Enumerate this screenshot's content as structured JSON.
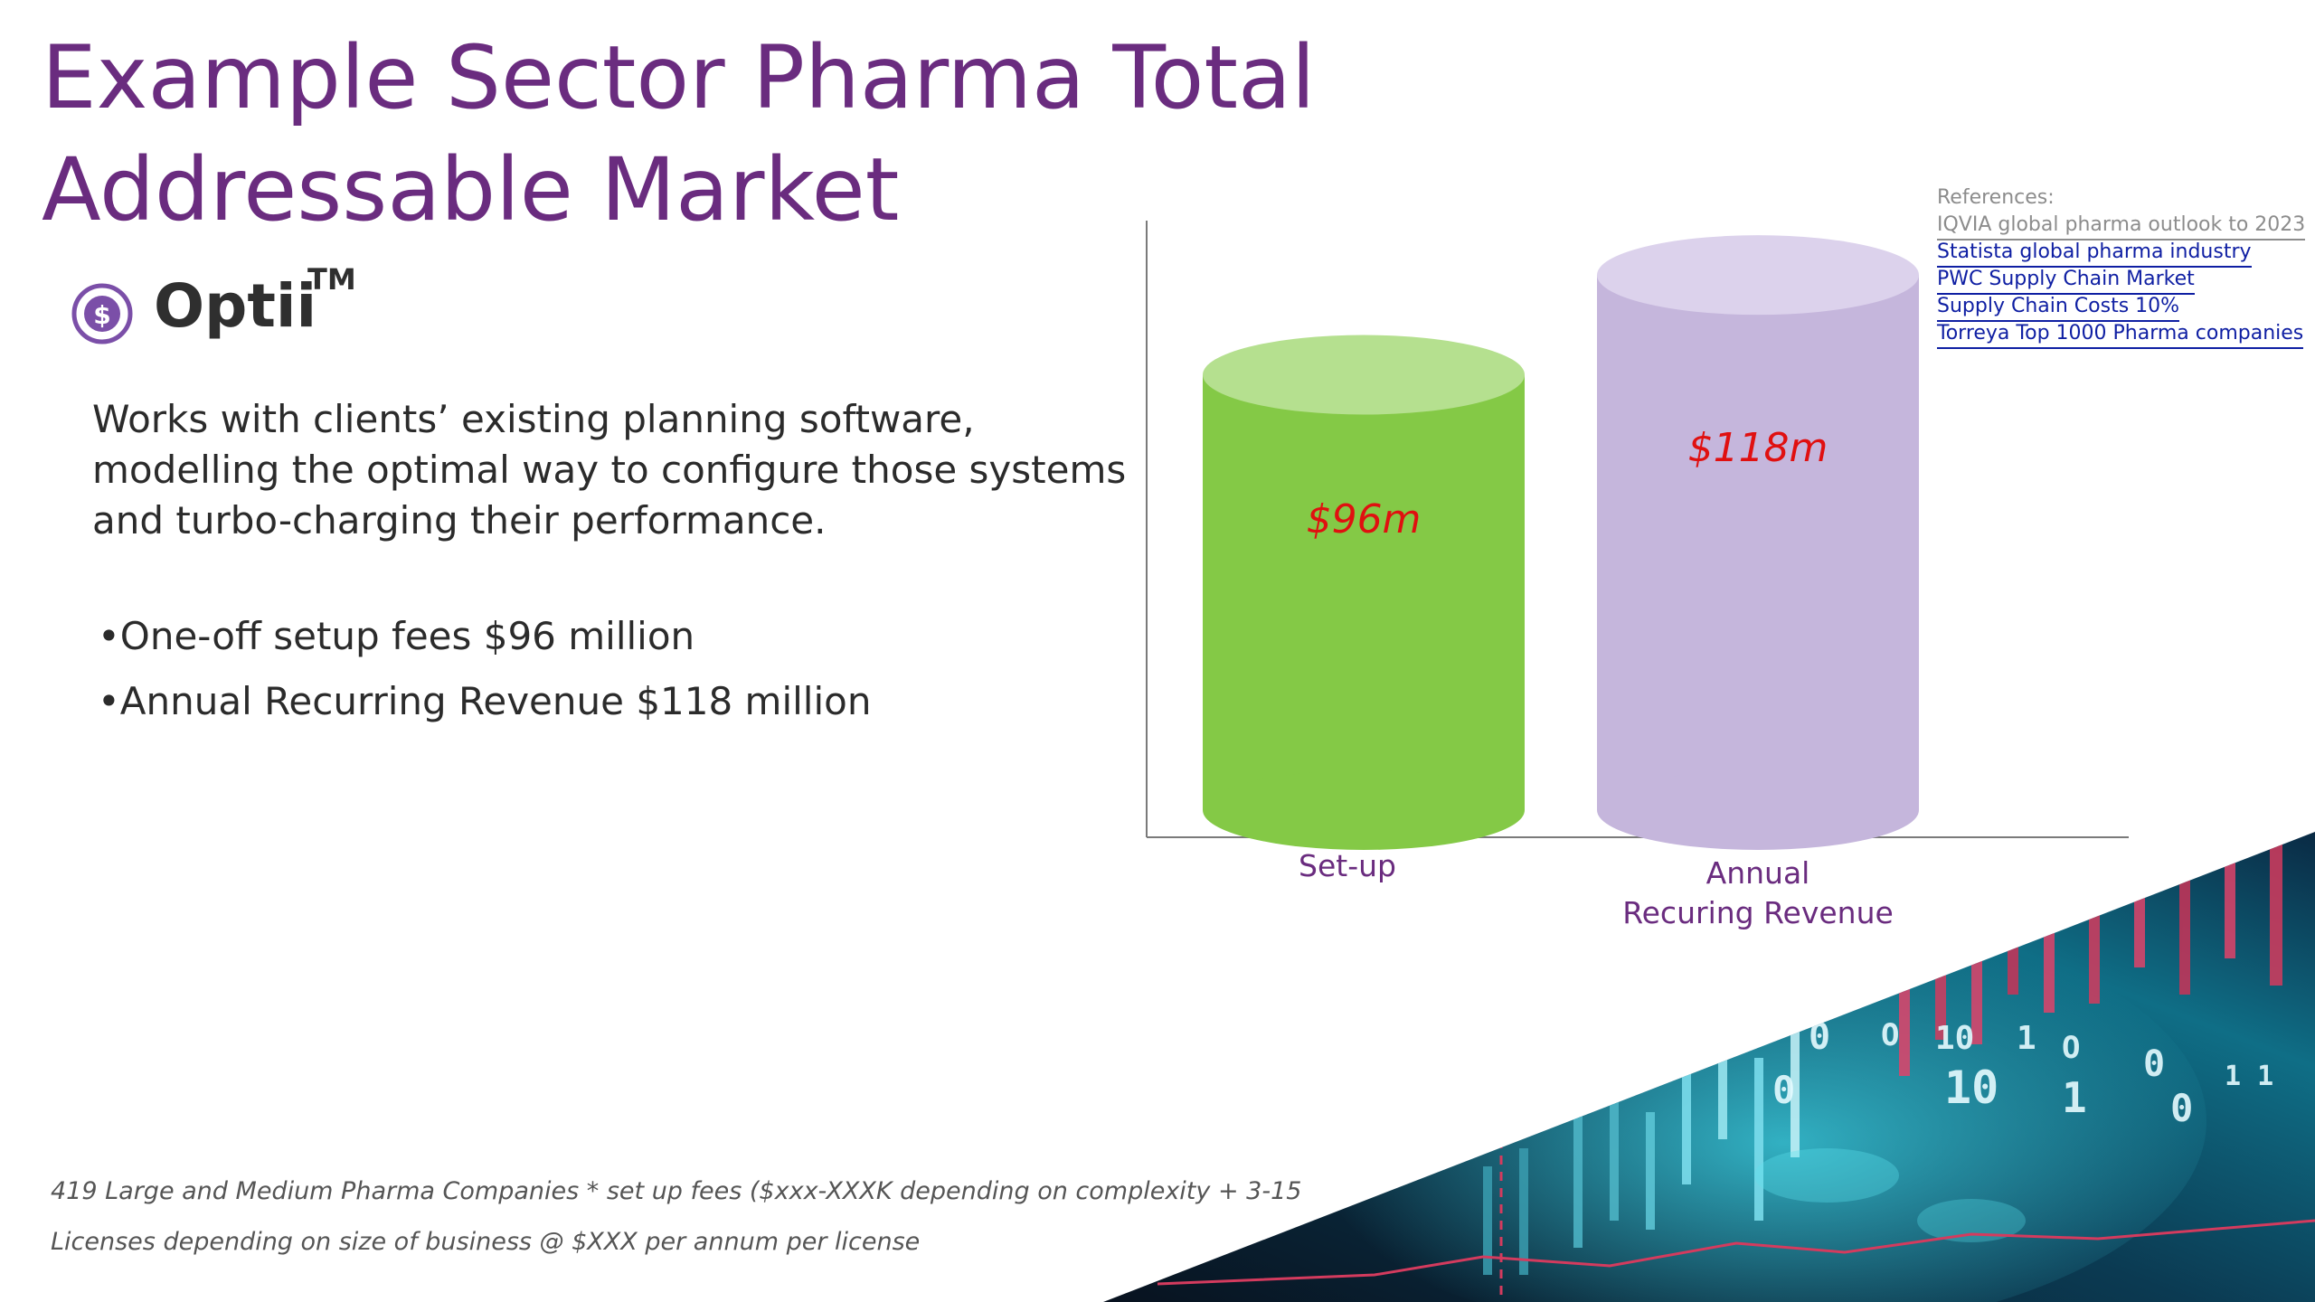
{
  "title": "Example Sector Pharma Total Addressable Market",
  "product": {
    "name": "Optii",
    "tm": "TM",
    "icon": "dollar-coin-icon"
  },
  "description": "Works with clients’ existing planning software, modelling the optimal way to configure those systems and turbo-charging their performance.",
  "bullets": [
    "•One-off setup fees $96 million",
    "•Annual Recurring Revenue $118 million"
  ],
  "references": {
    "header": "References:",
    "links": [
      "IQVIA global pharma outlook to 2023",
      "Statista global pharma industry",
      "PWC Supply Chain Market",
      "Supply Chain Costs 10%",
      "Torreya Top 1000 Pharma companies"
    ]
  },
  "footnote": {
    "line1": "419 Large and Medium Pharma Companies * set up fees ($xxx-XXXK depending on complexity + 3-15",
    "line2": "Licenses depending on size of business @ $XXX per annum per license"
  },
  "colors": {
    "title": "#6a2c7f",
    "setup_body": "#84c946",
    "setup_top": "#b5e08f",
    "arr_body": "#c5b6dc",
    "arr_top": "#dcd2ec",
    "value_label": "#e01010"
  },
  "chart_data": {
    "type": "bar",
    "style": "3d-cylinder",
    "categories": [
      "Set-up",
      "Annual Recuring Revenue"
    ],
    "category_lines": [
      [
        "Set-up"
      ],
      [
        "Annual",
        "Recuring Revenue"
      ]
    ],
    "values": [
      96,
      118
    ],
    "data_labels": [
      "$96m",
      "$118m"
    ],
    "ylim": [
      0,
      130
    ],
    "title": "",
    "xlabel": "",
    "ylabel": ""
  }
}
